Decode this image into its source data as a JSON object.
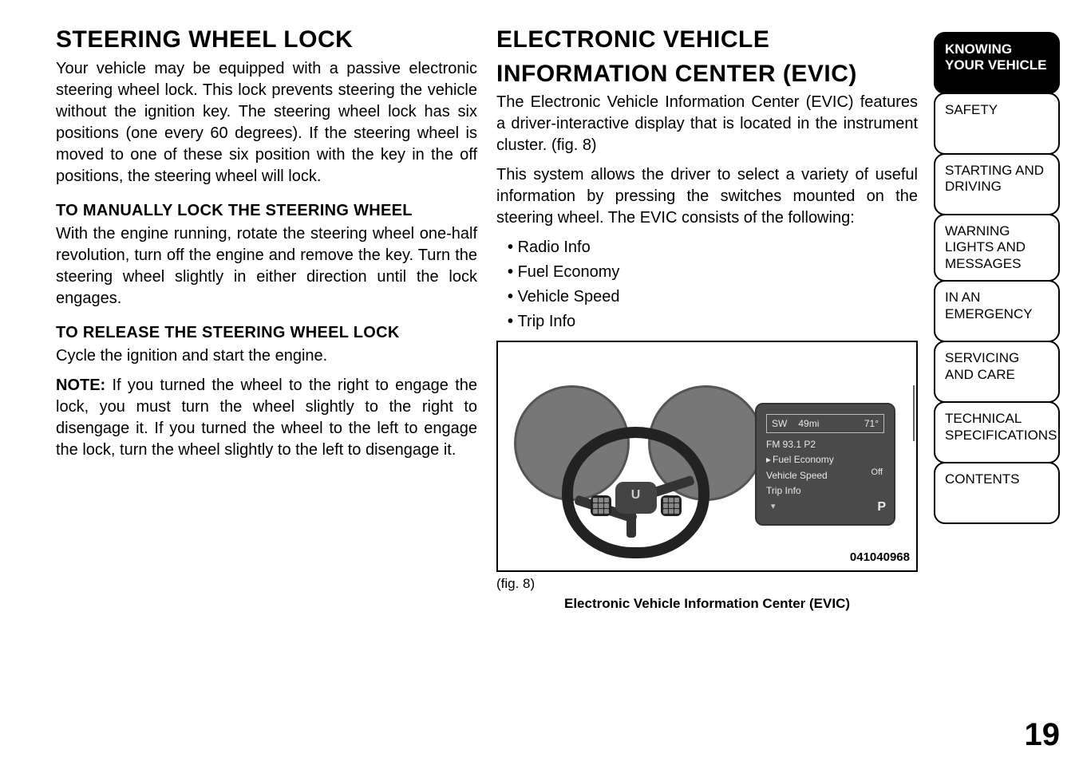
{
  "left": {
    "h1": "STEERING WHEEL LOCK",
    "p1": "Your vehicle may be equipped with a passive electronic steering wheel lock. This lock prevents steering the vehicle without the ignition key. The steering wheel lock has six positions (one every 60 degrees). If the steering wheel is moved to one of these six position with the key in the off positions, the steering wheel will lock.",
    "h2a": "TO MANUALLY LOCK THE STEERING WHEEL",
    "p2": "With the engine running, rotate the steering wheel one-half revolution, turn off the engine and remove the key. Turn the steering wheel slightly in either direction until the lock engages.",
    "h2b": "TO RELEASE THE STEERING WHEEL LOCK",
    "p3": "Cycle the ignition and start the engine.",
    "note_label": "NOTE:",
    "p4": "If you turned the wheel to the right to engage the lock, you must turn the wheel slightly to the right to disengage it. If you turned the wheel to the left to engage the lock, turn the wheel slightly to the left to disengage it."
  },
  "right": {
    "h1a": "ELECTRONIC VEHICLE",
    "h1b": "INFORMATION CENTER (EVIC)",
    "p1": "The Electronic Vehicle Information Center (EVIC) features a driver-interactive display that is located in the instrument cluster.  (fig. 8)",
    "p2": "This system allows the driver to select a variety of useful information by pressing the switches mounted on the steering wheel. The EVIC consists of the following:",
    "bullets": [
      "Radio Info",
      "Fuel Economy",
      "Vehicle Speed",
      "Trip Info"
    ],
    "fig_caption": "(fig. 8)",
    "fig_title": "Electronic Vehicle Information Center (EVIC)",
    "fig_code": "041040968"
  },
  "evic": {
    "sw": "SW",
    "dist": "49mi",
    "temp": "71°",
    "radio": "FM 93.1 P2",
    "items": [
      "Fuel Economy",
      "Vehicle Speed",
      "Trip Info"
    ],
    "off": "Off",
    "p": "P",
    "arrow": "▾",
    "hub": "U"
  },
  "tabs": [
    "KNOWING YOUR VEHICLE",
    "SAFETY",
    "STARTING AND DRIVING",
    "WARNING LIGHTS AND MESSAGES",
    "IN AN EMERGENCY",
    "SERVICING AND CARE",
    "TECHNICAL SPECIFICATIONS",
    "CONTENTS"
  ],
  "page_num": "19",
  "colors": {
    "text": "#000000",
    "bg": "#ffffff",
    "tab_active_bg": "#000000",
    "tab_active_fg": "#ffffff",
    "screen_bg": "#4a4a4a",
    "screen_fg": "#e8e8e8",
    "gauge": "#777777"
  }
}
